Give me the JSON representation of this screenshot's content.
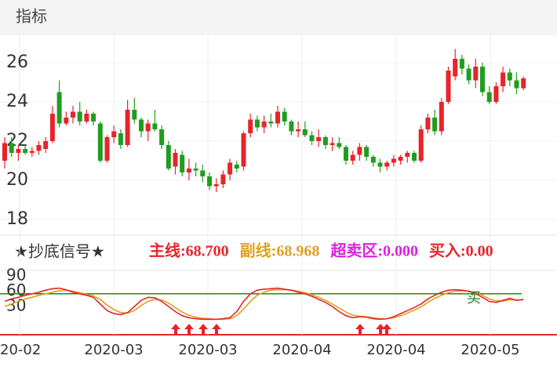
{
  "header": "指标",
  "chart_data": [
    {
      "type": "candlestick",
      "ylim": [
        17.2,
        27.4
      ],
      "yticks": [
        18,
        20,
        22,
        24,
        26
      ],
      "grid": true,
      "up_color": "#e8242a",
      "down_color": "#1e9e1e",
      "ohlc": [
        [
          21.0,
          22.2,
          20.6,
          21.9
        ],
        [
          21.9,
          22.2,
          21.2,
          21.4
        ],
        [
          21.4,
          21.8,
          21.0,
          21.6
        ],
        [
          21.6,
          21.8,
          21.3,
          21.4
        ],
        [
          21.4,
          21.7,
          21.2,
          21.5
        ],
        [
          21.5,
          22.0,
          21.3,
          21.8
        ],
        [
          21.6,
          22.2,
          21.4,
          22.0
        ],
        [
          22.0,
          23.8,
          21.9,
          23.4
        ],
        [
          24.5,
          25.1,
          22.7,
          22.9
        ],
        [
          22.9,
          23.5,
          22.8,
          23.2
        ],
        [
          23.2,
          23.8,
          22.9,
          23.5
        ],
        [
          23.5,
          24.0,
          22.8,
          23.0
        ],
        [
          23.0,
          23.6,
          22.9,
          23.4
        ],
        [
          23.4,
          23.5,
          22.8,
          23.0
        ],
        [
          22.9,
          23.0,
          20.9,
          21.0
        ],
        [
          21.0,
          22.3,
          20.9,
          22.2
        ],
        [
          22.2,
          22.8,
          21.9,
          22.5
        ],
        [
          22.4,
          22.6,
          21.6,
          21.8
        ],
        [
          21.8,
          24.1,
          21.7,
          23.6
        ],
        [
          23.6,
          24.2,
          22.9,
          23.1
        ],
        [
          23.1,
          23.2,
          22.2,
          22.5
        ],
        [
          22.5,
          23.1,
          22.0,
          22.9
        ],
        [
          22.9,
          23.6,
          22.5,
          22.6
        ],
        [
          22.6,
          22.8,
          21.6,
          21.8
        ],
        [
          21.8,
          22.0,
          20.5,
          20.6
        ],
        [
          20.7,
          21.6,
          20.3,
          21.4
        ],
        [
          21.3,
          21.5,
          20.2,
          20.4
        ],
        [
          20.4,
          21.1,
          20.0,
          20.6
        ],
        [
          20.6,
          20.9,
          20.2,
          20.5
        ],
        [
          20.5,
          20.8,
          19.9,
          20.2
        ],
        [
          20.2,
          20.4,
          19.5,
          19.7
        ],
        [
          19.7,
          20.1,
          19.4,
          19.8
        ],
        [
          19.8,
          20.5,
          19.6,
          20.3
        ],
        [
          20.3,
          21.1,
          20.0,
          20.9
        ],
        [
          20.8,
          21.0,
          20.4,
          20.6
        ],
        [
          20.7,
          22.5,
          20.5,
          22.4
        ],
        [
          22.4,
          23.4,
          22.2,
          23.1
        ],
        [
          23.1,
          23.3,
          22.5,
          22.7
        ],
        [
          22.7,
          23.3,
          22.4,
          23.0
        ],
        [
          23.0,
          23.4,
          22.7,
          22.9
        ],
        [
          22.9,
          23.8,
          22.7,
          23.5
        ],
        [
          23.5,
          23.7,
          22.8,
          23.0
        ],
        [
          23.0,
          23.1,
          22.3,
          22.5
        ],
        [
          22.5,
          23.0,
          22.2,
          22.6
        ],
        [
          22.6,
          23.0,
          22.2,
          22.3
        ],
        [
          22.3,
          22.5,
          21.8,
          22.0
        ],
        [
          22.0,
          22.6,
          21.7,
          22.2
        ],
        [
          22.2,
          22.3,
          21.6,
          21.8
        ],
        [
          21.8,
          22.2,
          21.5,
          21.9
        ],
        [
          21.9,
          22.2,
          21.6,
          21.7
        ],
        [
          21.7,
          21.8,
          20.8,
          21.0
        ],
        [
          21.0,
          21.5,
          20.8,
          21.3
        ],
        [
          21.3,
          21.9,
          21.0,
          21.7
        ],
        [
          21.7,
          21.8,
          21.0,
          21.2
        ],
        [
          21.2,
          21.3,
          20.7,
          20.9
        ],
        [
          20.9,
          21.1,
          20.4,
          20.7
        ],
        [
          20.7,
          21.0,
          20.5,
          20.9
        ],
        [
          20.9,
          21.3,
          20.7,
          21.1
        ],
        [
          21.0,
          21.3,
          20.8,
          21.2
        ],
        [
          21.2,
          21.5,
          20.9,
          21.4
        ],
        [
          21.4,
          21.5,
          20.9,
          21.0
        ],
        [
          21.0,
          22.8,
          20.9,
          22.6
        ],
        [
          22.6,
          23.4,
          22.4,
          23.2
        ],
        [
          23.2,
          23.6,
          22.3,
          22.5
        ],
        [
          22.5,
          24.2,
          22.3,
          24.0
        ],
        [
          24.0,
          25.8,
          23.9,
          25.6
        ],
        [
          25.3,
          26.7,
          25.1,
          26.2
        ],
        [
          26.2,
          26.4,
          25.4,
          25.7
        ],
        [
          25.7,
          25.9,
          24.9,
          25.1
        ],
        [
          25.1,
          26.2,
          24.7,
          25.8
        ],
        [
          25.8,
          26.0,
          24.3,
          24.5
        ],
        [
          24.5,
          24.8,
          23.9,
          24.0
        ],
        [
          24.0,
          25.0,
          23.9,
          24.8
        ],
        [
          24.8,
          25.8,
          24.5,
          25.5
        ],
        [
          25.5,
          25.7,
          24.8,
          25.1
        ],
        [
          25.1,
          25.5,
          24.4,
          24.7
        ],
        [
          24.7,
          25.3,
          24.6,
          25.2
        ]
      ]
    },
    {
      "type": "line",
      "title": "★抄底信号★",
      "ylim": [
        -25,
        100
      ],
      "yticks": [
        30,
        60,
        90
      ],
      "levels": [
        55
      ],
      "level_color": "#1e8a1e",
      "series": [
        {
          "name": "主线:68.700",
          "color": "#e8242a",
          "values": [
            40,
            45,
            48,
            52,
            55,
            58,
            62,
            65,
            66,
            63,
            58,
            55,
            52,
            48,
            35,
            22,
            16,
            14,
            18,
            30,
            42,
            48,
            47,
            40,
            30,
            20,
            12,
            8,
            6,
            5,
            5,
            5,
            6,
            8,
            20,
            40,
            55,
            62,
            64,
            65,
            66,
            64,
            62,
            58,
            55,
            50,
            44,
            38,
            30,
            20,
            12,
            8,
            10,
            9,
            6,
            5,
            6,
            10,
            16,
            22,
            28,
            35,
            45,
            52,
            58,
            62,
            63,
            62,
            60,
            55,
            48,
            40,
            38,
            42,
            46,
            42,
            44
          ]
        },
        {
          "name": "副线:68.968",
          "color": "#e0a020",
          "values": [
            30,
            35,
            40,
            45,
            48,
            52,
            55,
            58,
            61,
            62,
            60,
            57,
            54,
            51,
            44,
            33,
            24,
            18,
            17,
            22,
            32,
            40,
            44,
            43,
            37,
            28,
            19,
            13,
            9,
            7,
            6,
            5,
            5,
            6,
            12,
            25,
            40,
            52,
            58,
            62,
            63,
            63,
            62,
            60,
            57,
            53,
            48,
            42,
            35,
            27,
            19,
            13,
            11,
            10,
            8,
            6,
            6,
            8,
            12,
            17,
            23,
            29,
            38,
            46,
            52,
            57,
            60,
            61,
            60,
            57,
            52,
            45,
            41,
            41,
            43,
            43,
            43
          ]
        }
      ],
      "extra_labels": [
        {
          "text": "超卖区:0.000",
          "color": "#e020e0"
        },
        {
          "text": "买入:0.00",
          "color": "#e8242a"
        }
      ],
      "annotation": "买",
      "x_labels": [
        "20-02",
        "2020-03",
        "2020-03",
        "2020-04",
        "2020-04",
        "2020-05"
      ]
    }
  ]
}
